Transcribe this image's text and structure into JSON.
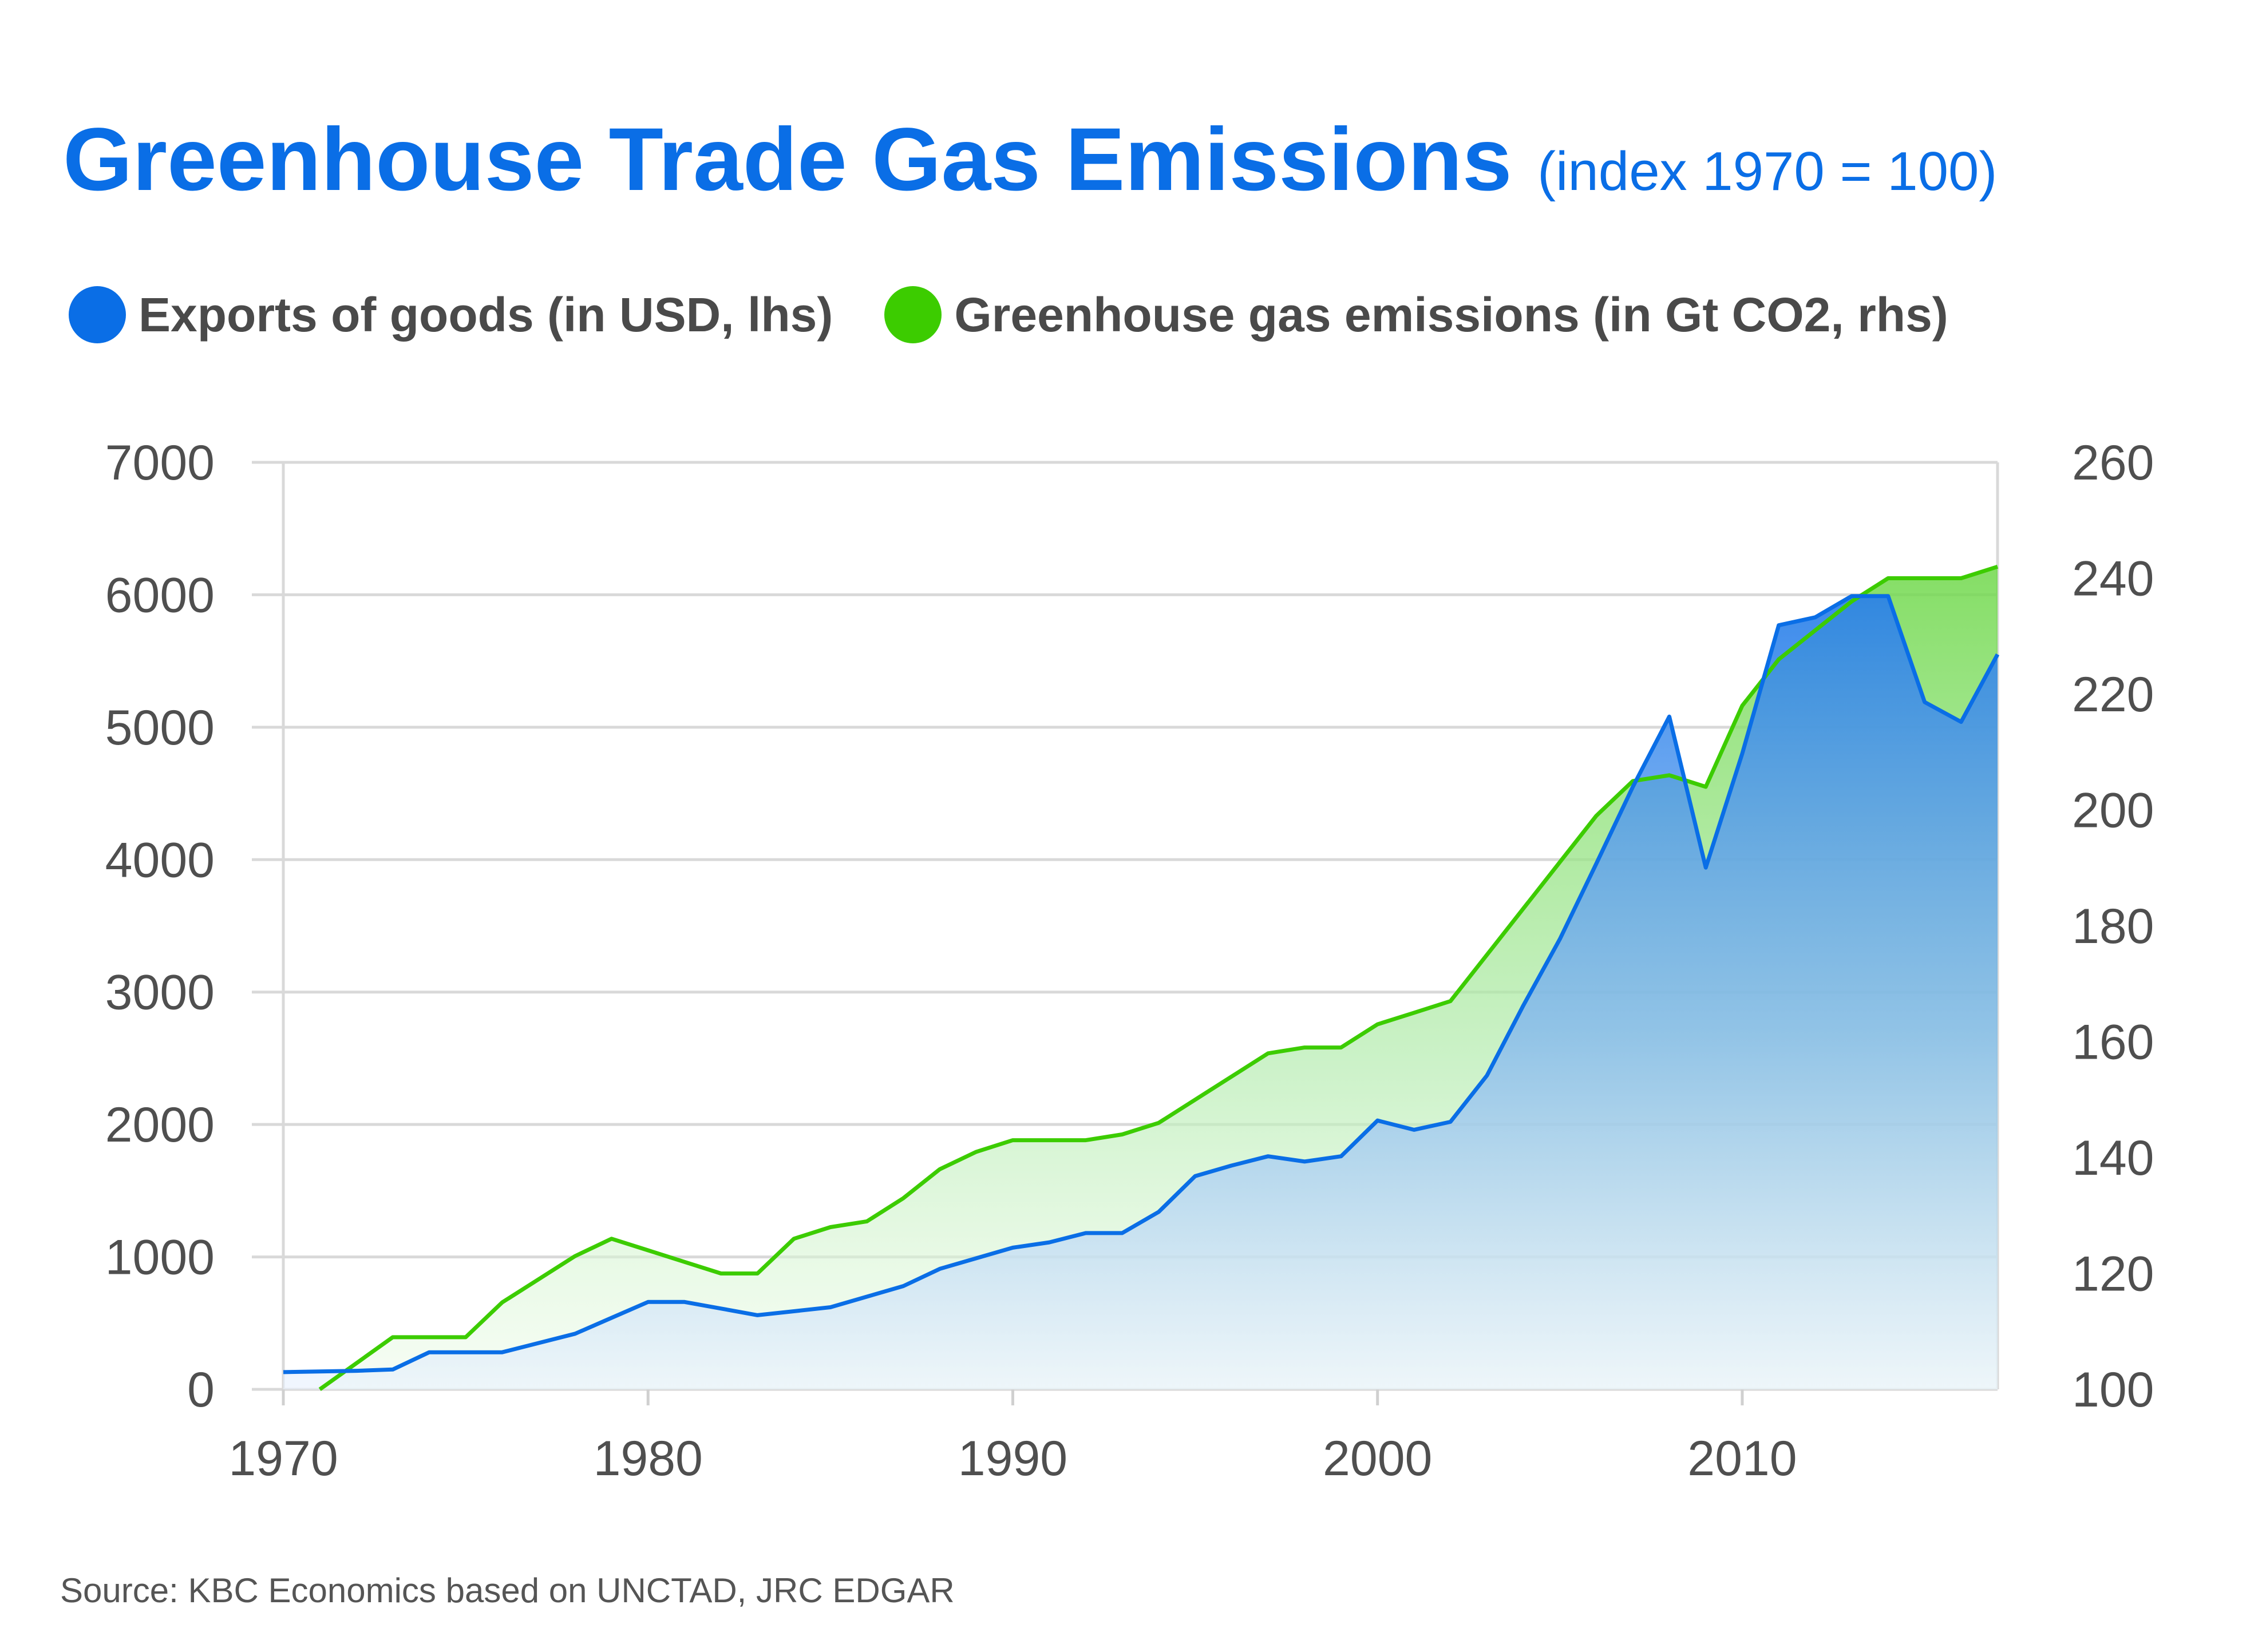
{
  "header": {
    "title": "Greenhouse Trade Gas Emissions",
    "subtitle": "(index 1970 = 100)"
  },
  "legend": [
    {
      "label": "Exports of goods (in USD, lhs)",
      "color": "#0a6ee6"
    },
    {
      "label": "Greenhouse gas emissions (in Gt CO2, rhs)",
      "color": "#3ccc00"
    }
  ],
  "footer": {
    "source": "Source: KBC Economics based on UNCTAD, JRC EDGAR"
  },
  "chart_data": {
    "type": "area",
    "title": "Greenhouse Trade Gas Emissions",
    "subtitle": "(index 1970 = 100)",
    "xlim": [
      1970,
      2017
    ],
    "x_ticks": [
      1970,
      1980,
      1990,
      2000,
      2010
    ],
    "y_left": {
      "ylim": [
        0,
        7000
      ],
      "ticks": [
        0,
        1000,
        2000,
        3000,
        4000,
        5000,
        6000,
        7000
      ]
    },
    "y_right": {
      "ylim": [
        100,
        260
      ],
      "ticks": [
        100,
        120,
        140,
        160,
        180,
        200,
        220,
        240,
        260
      ]
    },
    "grid": true,
    "legend_position": "top-left",
    "series": [
      {
        "name": "Exports of goods (in USD, lhs)",
        "axis": "left",
        "color": "#0a6ee6",
        "x": [
          1970,
          1972,
          1973,
          1974,
          1975,
          1976,
          1977,
          1978,
          1979,
          1980,
          1981,
          1982,
          1983,
          1984,
          1985,
          1986,
          1987,
          1988,
          1989,
          1990,
          1991,
          1992,
          1993,
          1994,
          1995,
          1996,
          1997,
          1998,
          1999,
          2000,
          2001,
          2002,
          2003,
          2004,
          2005,
          2006,
          2007,
          2008,
          2009,
          2010,
          2011,
          2012,
          2013,
          2014,
          2015,
          2016,
          2017
        ],
        "values": [
          130,
          140,
          150,
          280,
          280,
          280,
          350,
          420,
          540,
          660,
          660,
          610,
          560,
          590,
          620,
          700,
          780,
          910,
          990,
          1070,
          1110,
          1180,
          1180,
          1340,
          1610,
          1690,
          1760,
          1720,
          1760,
          2030,
          1960,
          2020,
          2370,
          2900,
          3400,
          3970,
          4550,
          5080,
          3940,
          4800,
          5770,
          5830,
          5990,
          5990,
          5190,
          5040,
          5550
        ]
      },
      {
        "name": "Greenhouse gas emissions (in Gt CO2, rhs)",
        "axis": "right",
        "color": "#3ccc00",
        "x": [
          1971,
          1973,
          1974,
          1975,
          1976,
          1977,
          1978,
          1979,
          1980,
          1981,
          1982,
          1983,
          1984,
          1985,
          1986,
          1987,
          1988,
          1989,
          1990,
          1991,
          1992,
          1993,
          1994,
          1995,
          1996,
          1997,
          1998,
          1999,
          2000,
          2001,
          2002,
          2003,
          2004,
          2005,
          2006,
          2007,
          2008,
          2009,
          2010,
          2011,
          2012,
          2013,
          2014,
          2015,
          2016,
          2017
        ],
        "values": [
          100,
          109,
          109,
          109,
          115,
          119,
          123,
          126,
          124,
          122,
          120,
          120,
          126,
          128,
          129,
          133,
          138,
          141,
          143,
          143,
          143,
          144,
          146,
          150,
          154,
          158,
          159,
          159,
          163,
          165,
          167,
          175,
          183,
          191,
          199,
          205,
          206,
          204,
          218,
          226,
          231,
          236,
          240,
          240,
          240,
          242
        ]
      }
    ]
  }
}
